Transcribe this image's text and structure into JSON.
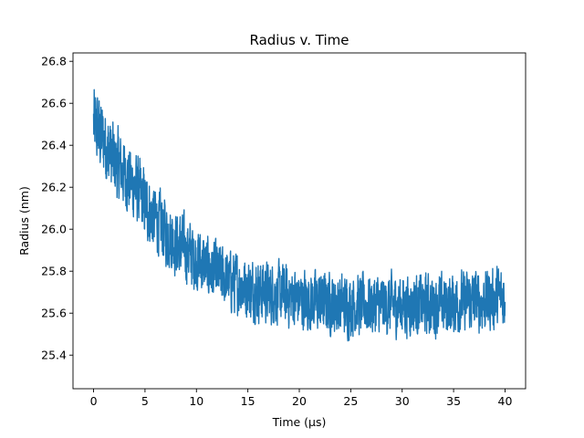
{
  "chart_data": {
    "type": "line",
    "title": "Radius v. Time",
    "xlabel": "Time (μs)",
    "ylabel": "Radius (nm)",
    "xlim": [
      -2,
      42
    ],
    "ylim": [
      25.24,
      26.84
    ],
    "xticks": [
      0,
      5,
      10,
      15,
      20,
      25,
      30,
      35,
      40
    ],
    "yticks": [
      25.4,
      25.6,
      25.8,
      26.0,
      26.2,
      26.4,
      26.6,
      26.8
    ],
    "ytick_labels": [
      "25.4",
      "25.6",
      "25.8",
      "26.0",
      "26.2",
      "26.4",
      "26.6",
      "26.8"
    ],
    "grid": false,
    "legend": "none",
    "color": "#1f77b4",
    "series": [
      {
        "name": "",
        "x": [
          0,
          1,
          2,
          3,
          4,
          5,
          6,
          7,
          8,
          9,
          10,
          11,
          12,
          13,
          14,
          15,
          16,
          17,
          18,
          19,
          20,
          21,
          22,
          23,
          24,
          25,
          26,
          27,
          28,
          29,
          30,
          31,
          32,
          33,
          34,
          35,
          36,
          37,
          38,
          39,
          40
        ],
        "y": [
          26.5,
          26.42,
          26.32,
          26.27,
          26.2,
          26.12,
          26.05,
          25.99,
          25.94,
          25.9,
          25.86,
          25.82,
          25.79,
          25.76,
          25.74,
          25.72,
          25.71,
          25.7,
          25.69,
          25.68,
          25.67,
          25.66,
          25.65,
          25.65,
          25.64,
          25.64,
          25.64,
          25.64,
          25.64,
          25.64,
          25.64,
          25.64,
          25.64,
          25.64,
          25.64,
          25.65,
          25.65,
          25.66,
          25.66,
          25.67,
          25.68
        ],
        "noise_amplitude": [
          0.18,
          0.17,
          0.17,
          0.16,
          0.16,
          0.16,
          0.15,
          0.15,
          0.15,
          0.15,
          0.15,
          0.14,
          0.14,
          0.14,
          0.14,
          0.14,
          0.14,
          0.14,
          0.14,
          0.14,
          0.14,
          0.14,
          0.14,
          0.14,
          0.14,
          0.14,
          0.14,
          0.14,
          0.14,
          0.14,
          0.14,
          0.14,
          0.14,
          0.14,
          0.14,
          0.14,
          0.14,
          0.14,
          0.14,
          0.14,
          0.14
        ]
      }
    ]
  }
}
